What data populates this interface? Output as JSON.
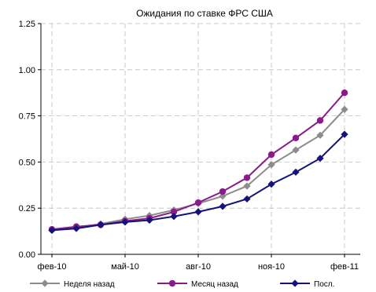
{
  "chart_data": {
    "type": "line",
    "title": "Ожидания по ставке ФРС США",
    "xlabel": "",
    "ylabel": "",
    "ylim": [
      0,
      1.25
    ],
    "yticks": [
      "0.00",
      "0.25",
      "0.50",
      "0.75",
      "1.00",
      "1.25"
    ],
    "yticks_values": [
      0,
      0.25,
      0.5,
      0.75,
      1.0,
      1.25
    ],
    "x_tick_labels": [
      "фев-10",
      "май-10",
      "авг-10",
      "ноя-10",
      "фев-11"
    ],
    "x_tick_index": [
      0,
      3,
      6,
      9,
      12
    ],
    "x": [
      "фев-10",
      "мар-10",
      "апр-10",
      "май-10",
      "июн-10",
      "июл-10",
      "авг-10",
      "сен-10",
      "окт-10",
      "ноя-10",
      "дек-10",
      "янв-11",
      "фев-11"
    ],
    "grid": true,
    "legend_position": "bottom",
    "series": [
      {
        "name": "Неделя назад",
        "color": "#8c8c8c",
        "marker": "diamond",
        "values": [
          0.13,
          0.145,
          0.165,
          0.19,
          0.21,
          0.24,
          0.275,
          0.315,
          0.37,
          0.485,
          0.565,
          0.645,
          0.785
        ]
      },
      {
        "name": "Месяц назад",
        "color": "#8b1a8b",
        "marker": "circle",
        "values": [
          0.135,
          0.15,
          0.16,
          0.18,
          0.195,
          0.23,
          0.28,
          0.34,
          0.415,
          0.54,
          0.63,
          0.725,
          0.875
        ]
      },
      {
        "name": "Посл.",
        "color": "#13137a",
        "marker": "diamond",
        "values": [
          0.13,
          0.14,
          0.16,
          0.175,
          0.185,
          0.205,
          0.23,
          0.26,
          0.3,
          0.38,
          0.445,
          0.52,
          0.65
        ]
      }
    ]
  }
}
